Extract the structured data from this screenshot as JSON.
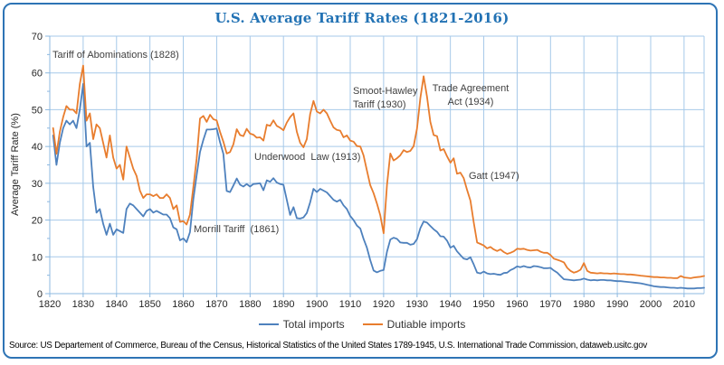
{
  "frame": {
    "border_color": "#2E74B5"
  },
  "source_note": "Source: US Departement of Commerce, Bureau of the Census, Historical Statistics of the United States 1789-1945, U.S. International Trade Commission, dataweb.usitc.gov",
  "colors": {
    "title": "#2272B4",
    "grid": "#A6C9E9",
    "axis": "#8CB8E0",
    "tick_label": "#262626",
    "annotation": "#3F3F3F"
  },
  "chart_data": {
    "type": "line",
    "title": "U.S. Average Tariff Rates (1821-2016)",
    "xlabel": "",
    "ylabel": "Average Tariff Rate (%)",
    "xlim": [
      1820,
      2016
    ],
    "ylim": [
      0,
      70
    ],
    "x_ticks": [
      1820,
      1830,
      1840,
      1850,
      1860,
      1870,
      1880,
      1890,
      1900,
      1910,
      1920,
      1930,
      1940,
      1950,
      1960,
      1970,
      1980,
      1990,
      2000,
      2010
    ],
    "y_ticks": [
      0,
      10,
      20,
      30,
      40,
      50,
      60,
      70
    ],
    "grid": true,
    "legend_position": "bottom",
    "x_start": 1821,
    "series": [
      {
        "name": "Total imports",
        "color": "#4E81BD",
        "values": [
          43,
          35,
          41,
          45,
          47,
          46,
          47,
          45,
          50,
          57,
          40,
          41,
          29,
          22,
          23,
          19,
          16,
          19,
          16,
          17.5,
          17,
          16.5,
          23,
          24.5,
          24,
          23,
          22,
          21,
          22.5,
          23,
          22,
          22.5,
          22,
          21.5,
          21.5,
          20.5,
          18,
          17.5,
          14.5,
          15,
          14,
          16.7,
          25.6,
          32.2,
          38.5,
          41.8,
          44.6,
          44.6,
          44.7,
          44.9,
          41.2,
          38,
          27.9,
          27.6,
          29.4,
          31.3,
          29.6,
          29.1,
          29.8,
          29.1,
          29.8,
          29.9,
          30,
          28.1,
          30.8,
          30.4,
          31.4,
          30.2,
          29.8,
          29.6,
          25.5,
          21.4,
          23.5,
          20.5,
          20.4,
          20.7,
          21.9,
          24.8,
          28.5,
          27.6,
          28.5,
          28,
          27.5,
          26.5,
          25.5,
          25,
          25.5,
          24,
          23,
          21.1,
          20,
          18.5,
          17.7,
          14.9,
          12.5,
          9.1,
          6.3,
          5.8,
          6.2,
          6.4,
          11.4,
          14.7,
          15.2,
          14.9,
          13.9,
          13.8,
          13.8,
          13.3,
          13.5,
          14.8,
          17.8,
          19.6,
          19.3,
          18.4,
          17.5,
          16.8,
          15.6,
          15.5,
          14.4,
          12.5,
          13,
          11.5,
          10.5,
          9.5,
          9.3,
          9.9,
          7.9,
          5.7,
          5.5,
          6,
          5.5,
          5.3,
          5.4,
          5.2,
          5.1,
          5.6,
          5.7,
          6.4,
          6.8,
          7.4,
          7.2,
          7.5,
          7.2,
          7.1,
          7.5,
          7.4,
          7.2,
          6.9,
          6.9,
          7,
          6.3,
          5.7,
          4.8,
          3.9,
          3.8,
          3.7,
          3.6,
          3.7,
          3.8,
          4.1,
          3.8,
          3.6,
          3.7,
          3.6,
          3.7,
          3.7,
          3.6,
          3.6,
          3.5,
          3.4,
          3.4,
          3.3,
          3.2,
          3.1,
          3,
          2.9,
          2.8,
          2.6,
          2.4,
          2.2,
          2,
          1.9,
          1.8,
          1.8,
          1.7,
          1.6,
          1.6,
          1.5,
          1.6,
          1.5,
          1.4,
          1.4,
          1.4,
          1.5,
          1.5,
          1.6
        ]
      },
      {
        "name": "Dutiable imports",
        "color": "#E87D2E",
        "values": [
          45,
          38,
          44,
          48,
          51,
          50,
          50,
          49,
          57,
          62,
          47,
          49,
          42,
          46,
          45,
          41,
          37,
          43,
          37,
          34,
          35,
          31,
          40,
          37,
          34,
          32,
          28,
          26,
          27,
          27,
          26.5,
          27,
          26,
          26,
          27,
          26,
          23,
          24,
          19.5,
          19.7,
          18.8,
          21.5,
          28.9,
          36.7,
          47.6,
          48.3,
          46.7,
          48.6,
          47.4,
          47.1,
          44,
          41.3,
          38.1,
          38.5,
          40.6,
          44.7,
          43.1,
          42.8,
          44.8,
          43.5,
          43.2,
          42.4,
          42.5,
          41.6,
          45.9,
          45.6,
          47.1,
          45.6,
          45.1,
          44.4,
          46.5,
          48,
          49,
          44,
          41,
          39.8,
          42,
          48.8,
          52.4,
          49.5,
          49,
          50,
          49,
          47,
          45.2,
          44.5,
          44.3,
          42.5,
          43,
          41.6,
          41.3,
          40.1,
          40,
          37.6,
          33.5,
          29.5,
          27.3,
          24.5,
          21.3,
          16.4,
          29.5,
          38.1,
          36.2,
          36.8,
          37.6,
          39,
          38.5,
          38.8,
          40.1,
          44.9,
          53.2,
          59.1,
          53.6,
          46.7,
          43.1,
          42.8,
          38.9,
          39.3,
          37.3,
          35.6,
          36.8,
          32.6,
          32.9,
          31.4,
          28.2,
          25.3,
          19.3,
          13.9,
          13.5,
          13.1,
          12.3,
          12.7,
          12,
          11.6,
          12,
          11.3,
          10.8,
          11.1,
          11.5,
          12.2,
          12.1,
          12.2,
          11.9,
          11.7,
          11.8,
          11.9,
          11.4,
          11.1,
          11.1,
          10.5,
          9.5,
          9.2,
          8.9,
          8.5,
          7,
          6.2,
          5.7,
          6,
          6.5,
          8.3,
          6.2,
          5.7,
          5.6,
          5.5,
          5.6,
          5.5,
          5.5,
          5.4,
          5.5,
          5.4,
          5.3,
          5.3,
          5.2,
          5.2,
          5.1,
          5,
          4.9,
          4.8,
          4.7,
          4.6,
          4.5,
          4.5,
          4.4,
          4.4,
          4.3,
          4.3,
          4.2,
          4.2,
          4.8,
          4.4,
          4.3,
          4.2,
          4.4,
          4.5,
          4.6,
          4.8
        ]
      }
    ],
    "annotations": [
      {
        "text": "Tariff of Abominations (1828)",
        "year": 1828
      },
      {
        "text": "Morrill Tariff  (1861)",
        "year": 1861
      },
      {
        "text": "Underwood  Law (1913)",
        "year": 1913
      },
      {
        "text": "Smoot-Hawley Tariff (1930)",
        "year": 1930
      },
      {
        "text": "Trade Agreement Act (1934)",
        "year": 1934
      },
      {
        "text": "Gatt (1947)",
        "year": 1947
      }
    ]
  }
}
